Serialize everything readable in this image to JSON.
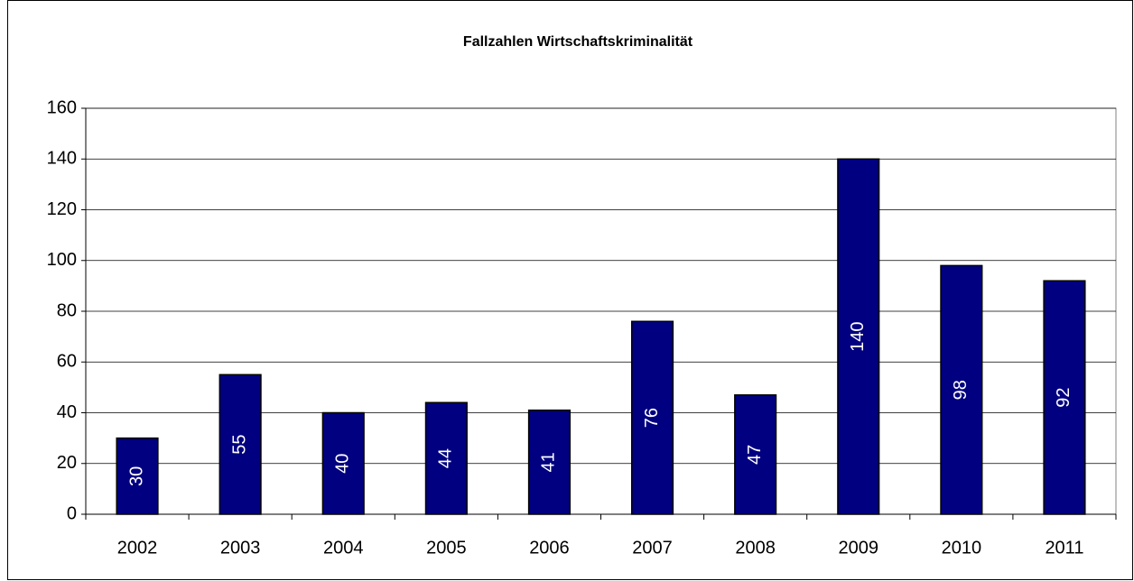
{
  "chart_data": {
    "type": "bar",
    "title": "Fallzahlen Wirtschaftskriminalität",
    "categories": [
      "2002",
      "2003",
      "2004",
      "2005",
      "2006",
      "2007",
      "2008",
      "2009",
      "2010",
      "2011"
    ],
    "values": [
      30,
      55,
      40,
      44,
      41,
      76,
      47,
      140,
      98,
      92
    ],
    "color": "#000080",
    "ylim": [
      0,
      160
    ],
    "yticks": [
      0,
      20,
      40,
      60,
      80,
      100,
      120,
      140,
      160
    ],
    "grid": true
  }
}
